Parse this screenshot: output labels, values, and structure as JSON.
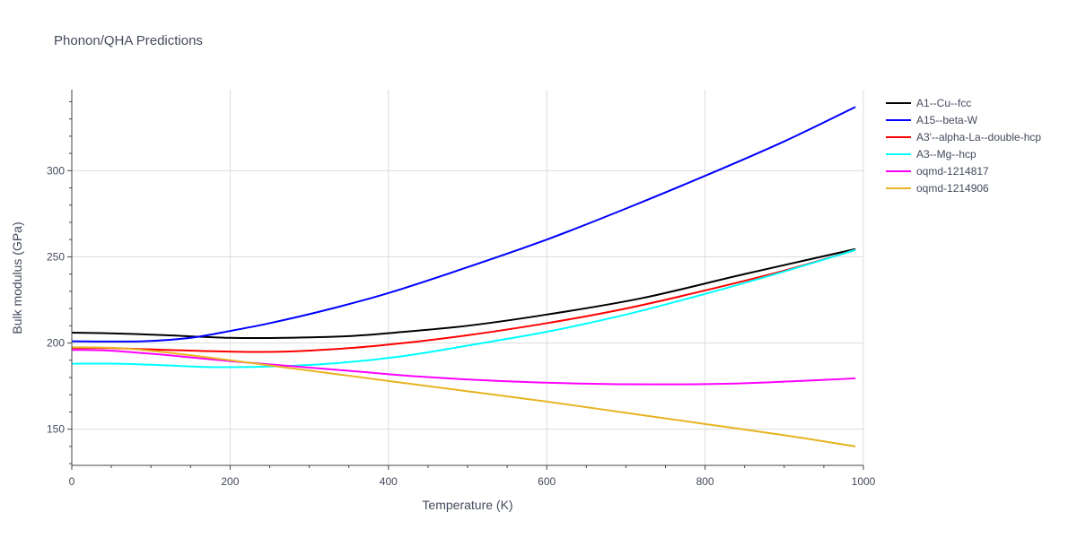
{
  "chart_data": {
    "type": "line",
    "title": "Phonon/QHA Predictions",
    "xlabel": "Temperature (K)",
    "ylabel": "Bulk modulus (GPa)",
    "xlim": [
      0,
      1000
    ],
    "ylim": [
      129,
      347
    ],
    "xticks": [
      0,
      200,
      400,
      600,
      800,
      1000
    ],
    "yticks": [
      150,
      200,
      250,
      300
    ],
    "grid": true,
    "legend_position": "top-right",
    "series": [
      {
        "name": "A1--Cu--fcc",
        "color": "#000000",
        "x": [
          0,
          60,
          120,
          200,
          270,
          350,
          420,
          500,
          600,
          720,
          850,
          990
        ],
        "y": [
          206,
          205.5,
          204.5,
          203,
          203,
          204,
          206.5,
          210,
          216.5,
          226,
          240,
          254.5
        ]
      },
      {
        "name": "A15--beta-W",
        "color": "#0000ff",
        "x": [
          0,
          90,
          150,
          200,
          250,
          320,
          400,
          500,
          600,
          700,
          800,
          900,
          990
        ],
        "y": [
          201,
          201,
          203,
          207,
          211.5,
          219,
          229,
          244,
          260,
          278,
          297,
          317,
          337
        ]
      },
      {
        "name": "A3'--alpha-La--double-hcp",
        "color": "#ff0000",
        "x": [
          0,
          50,
          120,
          200,
          270,
          350,
          420,
          500,
          600,
          700,
          800,
          900,
          990
        ],
        "y": [
          197,
          197,
          196,
          195,
          195,
          197,
          200,
          204.5,
          211.5,
          220,
          230.5,
          242,
          254
        ]
      },
      {
        "name": "A3--Mg--hcp",
        "color": "#00ffff",
        "x": [
          0,
          60,
          120,
          180,
          260,
          340,
          420,
          500,
          600,
          700,
          800,
          900,
          990
        ],
        "y": [
          188,
          188,
          187,
          186,
          186.5,
          188.5,
          192.5,
          198.5,
          206.5,
          216.5,
          228.5,
          241.5,
          254
        ]
      },
      {
        "name": "oqmd-1214817",
        "color": "#ff00ff",
        "x": [
          0,
          50,
          120,
          200,
          280,
          360,
          440,
          540,
          640,
          740,
          840,
          920,
          990
        ],
        "y": [
          196,
          195.5,
          193,
          189.5,
          186.5,
          183.5,
          180.5,
          178,
          176.5,
          176,
          176.5,
          178,
          179.5
        ]
      },
      {
        "name": "oqmd-1214906",
        "color": "#e6b422",
        "x": [
          0,
          60,
          120,
          200,
          300,
          400,
          500,
          600,
          700,
          800,
          900,
          990
        ],
        "y": [
          197.5,
          197,
          194.5,
          190,
          184,
          178,
          172,
          166,
          159.5,
          153,
          146.5,
          140
        ]
      }
    ]
  }
}
